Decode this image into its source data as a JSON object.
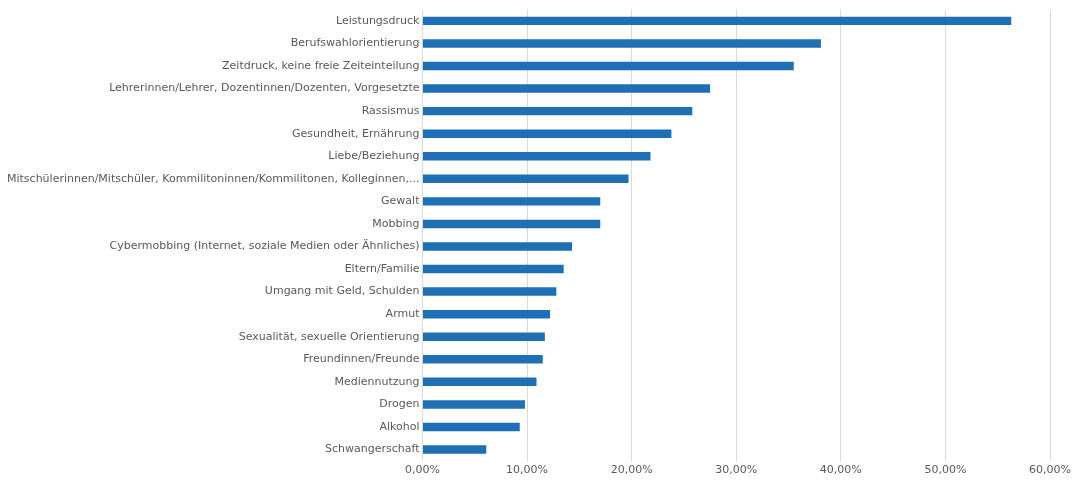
{
  "chart_data": {
    "type": "bar",
    "orientation": "horizontal",
    "categories": [
      "Leistungsdruck",
      "Berufswahlorientierung",
      "Zeitdruck, keine freie Zeiteinteilung",
      "Lehrerinnen/Lehrer, Dozentinnen/Dozenten, Vorgesetzte",
      "Rassismus",
      "Gesundheit, Ernährung",
      "Liebe/Beziehung",
      "Mitschülerinnen/Mitschüler, Kommilitoninnen/Kommilitonen, Kolleginnen,...",
      "Gewalt",
      "Mobbing",
      "Cybermobbing (Internet, soziale Medien oder Ähnliches)",
      "Eltern/Familie",
      "Umgang mit Geld, Schulden",
      "Armut",
      "Sexualität, sexuelle Orientierung",
      "Freundinnen/Freunde",
      "Mediennutzung",
      "Drogen",
      "Alkohol",
      "Schwangerschaft"
    ],
    "values": [
      56.3,
      38.1,
      35.5,
      27.5,
      25.8,
      23.8,
      21.8,
      19.7,
      17.0,
      17.0,
      14.3,
      13.5,
      12.8,
      12.2,
      11.7,
      11.5,
      10.9,
      9.8,
      9.3,
      6.1
    ],
    "color": "#1f6fb5",
    "xlim": [
      0,
      60
    ],
    "xticks": [
      {
        "value": 0,
        "label": "0,00%"
      },
      {
        "value": 10,
        "label": "10,00%"
      },
      {
        "value": 20,
        "label": "20,00%"
      },
      {
        "value": 30,
        "label": "30,00%"
      },
      {
        "value": 40,
        "label": "40,00%"
      },
      {
        "value": 50,
        "label": "50,00%"
      },
      {
        "value": 60,
        "label": "60,00%"
      }
    ],
    "grid": "x",
    "legend": false
  }
}
